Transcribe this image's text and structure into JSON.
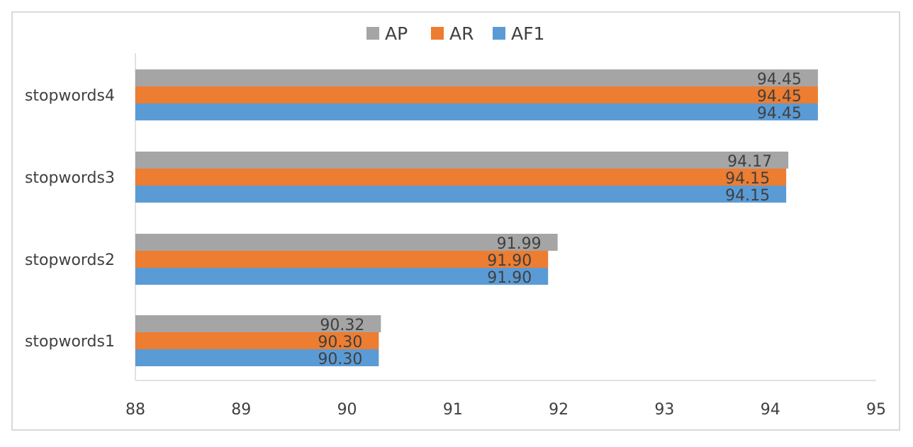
{
  "chart_data": {
    "type": "bar",
    "orientation": "horizontal",
    "categories": [
      "stopwords1",
      "stopwords2",
      "stopwords3",
      "stopwords4"
    ],
    "series": [
      {
        "name": "AP",
        "color": "#a5a5a5",
        "values": [
          90.32,
          91.99,
          94.17,
          94.45
        ],
        "labels": [
          "90.32",
          "91.99",
          "94.17",
          "94.45"
        ]
      },
      {
        "name": "AR",
        "color": "#ed7d31",
        "values": [
          90.3,
          91.9,
          94.15,
          94.45
        ],
        "labels": [
          "90.30",
          "91.90",
          "94.15",
          "94.45"
        ]
      },
      {
        "name": "AF1",
        "color": "#5b9bd5",
        "values": [
          90.3,
          91.9,
          94.15,
          94.45
        ],
        "labels": [
          "90.30",
          "91.90",
          "94.15",
          "94.45"
        ]
      }
    ],
    "xlim": [
      88,
      95
    ],
    "x_ticks": [
      "88",
      "89",
      "90",
      "91",
      "92",
      "93",
      "94",
      "95"
    ],
    "title": "",
    "xlabel": "",
    "ylabel": "",
    "legend_position": "top-center",
    "grid": false
  }
}
